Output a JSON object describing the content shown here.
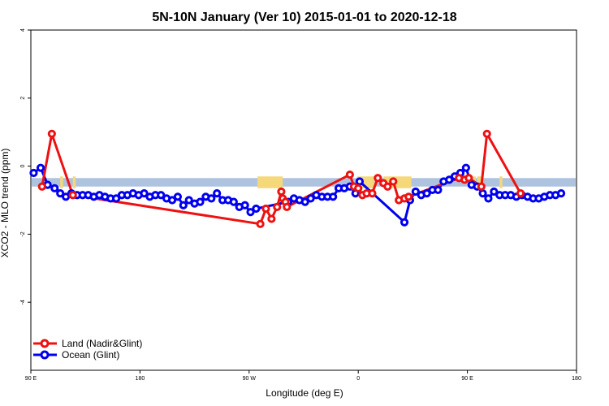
{
  "chart_data": {
    "type": "line",
    "title": "5N-10N January (Ver 10)   2015-01-01 to 2020-12-18",
    "xlabel": "Longitude (deg E)",
    "ylabel": "XCO2 - MLO trend (ppm)",
    "xlim": [
      90,
      480
    ],
    "ylim": [
      -6,
      4
    ],
    "x_ticks": [
      {
        "value": 90,
        "label": "90 E"
      },
      {
        "value": 168,
        "label": "180"
      },
      {
        "value": 246,
        "label": "90 W"
      },
      {
        "value": 324,
        "label": "0"
      },
      {
        "value": 402,
        "label": "90 E"
      },
      {
        "value": 480,
        "label": "180"
      }
    ],
    "y_ticks": [
      {
        "value": 4,
        "label": "4"
      },
      {
        "value": 2,
        "label": "2"
      },
      {
        "value": 0,
        "label": "0"
      },
      {
        "value": -2,
        "label": "-2"
      },
      {
        "value": -4,
        "label": "-4"
      }
    ],
    "band": {
      "ymin": -0.6,
      "ymax": -0.35,
      "color": "#aec3e0"
    },
    "land_marks": {
      "color": "#f5d87a",
      "patches": [
        [
          111,
          113
        ],
        [
          120,
          122
        ],
        [
          252,
          270
        ],
        [
          323,
          335
        ],
        [
          335,
          335.5
        ],
        [
          342,
          348
        ],
        [
          348,
          350
        ],
        [
          350,
          352
        ],
        [
          352,
          359
        ],
        [
          359,
          362
        ],
        [
          403,
          405
        ],
        [
          406,
          408
        ],
        [
          409,
          412
        ],
        [
          425,
          427
        ]
      ]
    },
    "series": [
      {
        "name": "Land (Nadir&Glint)",
        "color": "#ee1111",
        "points": [
          [
            98,
            -0.6
          ],
          [
            105,
            0.95
          ],
          [
            120,
            -0.85
          ],
          [
            254,
            -1.7
          ],
          [
            258,
            -1.25
          ],
          [
            262,
            -1.55
          ],
          [
            266,
            -1.2
          ],
          [
            269,
            -0.75
          ],
          [
            270,
            -0.95
          ],
          [
            272,
            -1.05
          ],
          [
            273,
            -1.2
          ],
          [
            318,
            -0.25
          ],
          [
            321,
            -0.6
          ],
          [
            324,
            -0.65
          ],
          [
            327,
            -0.85
          ],
          [
            330,
            -0.8
          ],
          [
            334,
            -0.8
          ],
          [
            338,
            -0.35
          ],
          [
            342,
            -0.5
          ],
          [
            345,
            -0.6
          ],
          [
            349,
            -0.45
          ],
          [
            353,
            -1.0
          ],
          [
            357,
            -0.95
          ],
          [
            360,
            -0.9
          ],
          [
            396,
            -0.35
          ],
          [
            400,
            -0.4
          ],
          [
            403,
            -0.35
          ],
          [
            412,
            -0.6
          ],
          [
            416,
            0.95
          ],
          [
            440,
            -0.8
          ]
        ]
      },
      {
        "name": "Ocean (Glint)",
        "color": "#0000ee",
        "points": [
          [
            92,
            -0.2
          ],
          [
            97,
            -0.05
          ],
          [
            102,
            -0.55
          ],
          [
            107,
            -0.65
          ],
          [
            111,
            -0.8
          ],
          [
            115,
            -0.9
          ],
          [
            119,
            -0.8
          ],
          [
            123,
            -0.85
          ],
          [
            127,
            -0.85
          ],
          [
            131,
            -0.85
          ],
          [
            135,
            -0.9
          ],
          [
            139,
            -0.85
          ],
          [
            143,
            -0.9
          ],
          [
            147,
            -0.95
          ],
          [
            151,
            -0.95
          ],
          [
            155,
            -0.85
          ],
          [
            159,
            -0.85
          ],
          [
            163,
            -0.8
          ],
          [
            167,
            -0.85
          ],
          [
            171,
            -0.8
          ],
          [
            175,
            -0.9
          ],
          [
            179,
            -0.85
          ],
          [
            183,
            -0.85
          ],
          [
            187,
            -0.95
          ],
          [
            191,
            -1.0
          ],
          [
            195,
            -0.9
          ],
          [
            199,
            -1.15
          ],
          [
            203,
            -1.0
          ],
          [
            207,
            -1.1
          ],
          [
            211,
            -1.05
          ],
          [
            215,
            -0.9
          ],
          [
            219,
            -0.95
          ],
          [
            223,
            -0.8
          ],
          [
            227,
            -1.0
          ],
          [
            231,
            -1.0
          ],
          [
            235,
            -1.05
          ],
          [
            239,
            -1.2
          ],
          [
            243,
            -1.15
          ],
          [
            247,
            -1.35
          ],
          [
            251,
            -1.25
          ],
          [
            274,
            -1.05
          ],
          [
            278,
            -0.95
          ],
          [
            282,
            -1.0
          ],
          [
            286,
            -1.05
          ],
          [
            290,
            -0.95
          ],
          [
            294,
            -0.85
          ],
          [
            298,
            -0.9
          ],
          [
            302,
            -0.9
          ],
          [
            306,
            -0.9
          ],
          [
            310,
            -0.65
          ],
          [
            314,
            -0.65
          ],
          [
            318,
            -0.6
          ],
          [
            322,
            -0.8
          ],
          [
            325,
            -0.45
          ],
          [
            357,
            -1.65
          ],
          [
            361,
            -1.0
          ],
          [
            365,
            -0.75
          ],
          [
            369,
            -0.85
          ],
          [
            373,
            -0.8
          ],
          [
            377,
            -0.7
          ],
          [
            381,
            -0.7
          ],
          [
            385,
            -0.45
          ],
          [
            389,
            -0.4
          ],
          [
            393,
            -0.3
          ],
          [
            397,
            -0.2
          ],
          [
            401,
            -0.05
          ],
          [
            405,
            -0.55
          ],
          [
            409,
            -0.6
          ],
          [
            413,
            -0.8
          ],
          [
            417,
            -0.95
          ],
          [
            421,
            -0.75
          ],
          [
            425,
            -0.85
          ],
          [
            429,
            -0.85
          ],
          [
            433,
            -0.85
          ],
          [
            437,
            -0.9
          ],
          [
            441,
            -0.85
          ],
          [
            445,
            -0.9
          ],
          [
            449,
            -0.95
          ],
          [
            453,
            -0.95
          ],
          [
            457,
            -0.9
          ],
          [
            461,
            -0.85
          ],
          [
            465,
            -0.85
          ],
          [
            469,
            -0.8
          ]
        ]
      }
    ],
    "legend": {
      "placement": "bottom-left"
    }
  }
}
